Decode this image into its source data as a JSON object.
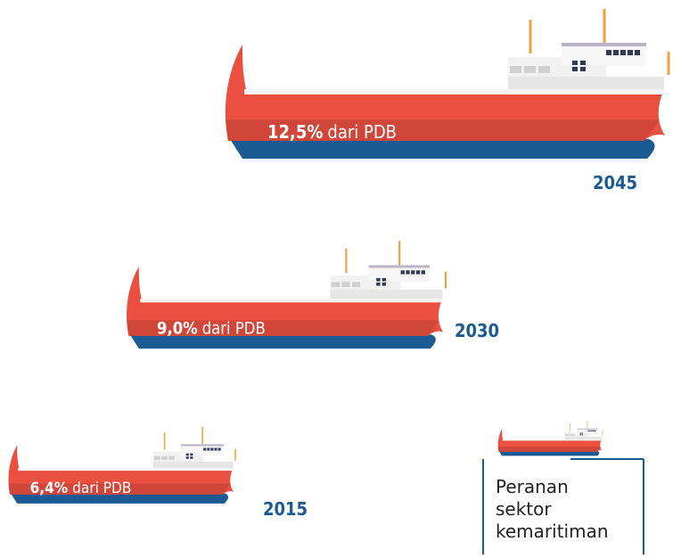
{
  "chart_data": {
    "type": "pictorial-bar",
    "categories": [
      "2015",
      "2030",
      "2045"
    ],
    "values": [
      6.4,
      9.0,
      12.5
    ],
    "value_labels": [
      "6,4%",
      "9,0%",
      "12,5%"
    ],
    "value_suffix": "dari PDB",
    "legend_label": "Peranan sektor kemaritiman",
    "color": "#ea4f3f"
  }
}
